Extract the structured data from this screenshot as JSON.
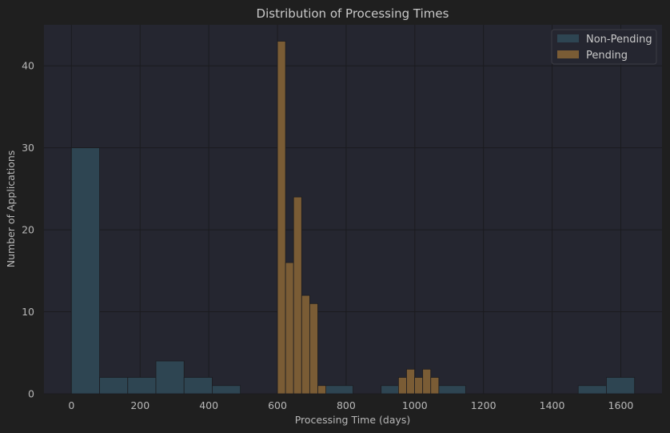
{
  "chart_data": {
    "type": "bar",
    "subtype": "histogram",
    "title": "Distribution of Processing Times",
    "xlabel": "Processing Time (days)",
    "ylabel": "Number of Applications",
    "xlim": [
      -80,
      1720
    ],
    "ylim": [
      0,
      45
    ],
    "xticks": [
      0,
      200,
      400,
      600,
      800,
      1000,
      1200,
      1400,
      1600
    ],
    "yticks": [
      0,
      10,
      20,
      30,
      40
    ],
    "grid": true,
    "legend": "top-right",
    "colors": {
      "background": "#1f1f1f",
      "plot_area": "#252630",
      "grid": "#1b1b1f",
      "non_pending": "#2e4552",
      "pending": "#7a5c35",
      "legend_bg": "#252630",
      "legend_border": "#3c3c44"
    },
    "series": [
      {
        "name": "Non-Pending",
        "bins": [
          {
            "start": 0,
            "end": 82,
            "count": 30
          },
          {
            "start": 82,
            "end": 164,
            "count": 2
          },
          {
            "start": 164,
            "end": 246,
            "count": 2
          },
          {
            "start": 246,
            "end": 328,
            "count": 4
          },
          {
            "start": 328,
            "end": 410,
            "count": 2
          },
          {
            "start": 410,
            "end": 492,
            "count": 1
          },
          {
            "start": 738,
            "end": 820,
            "count": 1
          },
          {
            "start": 902,
            "end": 984,
            "count": 1
          },
          {
            "start": 1066,
            "end": 1148,
            "count": 1
          },
          {
            "start": 1476,
            "end": 1558,
            "count": 1
          },
          {
            "start": 1558,
            "end": 1640,
            "count": 2
          }
        ]
      },
      {
        "name": "Pending",
        "bins": [
          {
            "start": 600,
            "end": 623.5,
            "count": 43
          },
          {
            "start": 623.5,
            "end": 647,
            "count": 16
          },
          {
            "start": 647,
            "end": 670.5,
            "count": 24
          },
          {
            "start": 670.5,
            "end": 694,
            "count": 12
          },
          {
            "start": 694,
            "end": 717.5,
            "count": 11
          },
          {
            "start": 717.5,
            "end": 741,
            "count": 1
          },
          {
            "start": 952.5,
            "end": 976,
            "count": 2
          },
          {
            "start": 976,
            "end": 999.5,
            "count": 3
          },
          {
            "start": 999.5,
            "end": 1023,
            "count": 2
          },
          {
            "start": 1023,
            "end": 1046.5,
            "count": 3
          },
          {
            "start": 1046.5,
            "end": 1070,
            "count": 2
          }
        ]
      }
    ]
  }
}
